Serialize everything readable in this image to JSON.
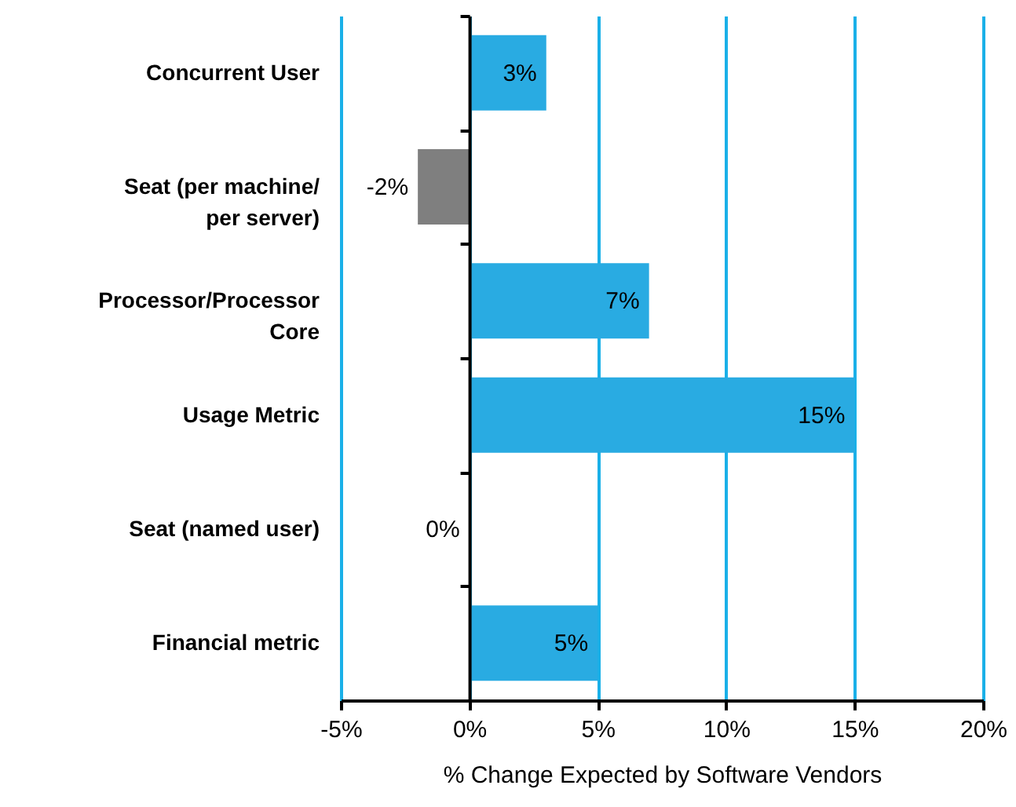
{
  "chart_data": {
    "type": "bar",
    "orientation": "horizontal",
    "categories": [
      "Concurrent User",
      "Seat (per machine/\nper server)",
      "Processor/Processor\nCore",
      "Usage Metric",
      "Seat (named user)",
      "Financial metric"
    ],
    "values": [
      3,
      -2,
      7,
      15,
      0,
      5
    ],
    "colors": [
      "#29abe2",
      "#7f7f7f",
      "#29abe2",
      "#29abe2",
      "#29abe2",
      "#29abe2"
    ],
    "value_labels": [
      "3%",
      "-2%",
      "7%",
      "15%",
      "0%",
      "5%"
    ],
    "xlabel": "% Change Expected by Software Vendors",
    "xlim": [
      -5,
      20
    ],
    "xticks": [
      {
        "value": -5,
        "label": "-5%"
      },
      {
        "value": 0,
        "label": "0%"
      },
      {
        "value": 5,
        "label": "5%"
      },
      {
        "value": 10,
        "label": "10%"
      },
      {
        "value": 15,
        "label": "15%"
      },
      {
        "value": 20,
        "label": "20%"
      }
    ],
    "grid": "x"
  }
}
